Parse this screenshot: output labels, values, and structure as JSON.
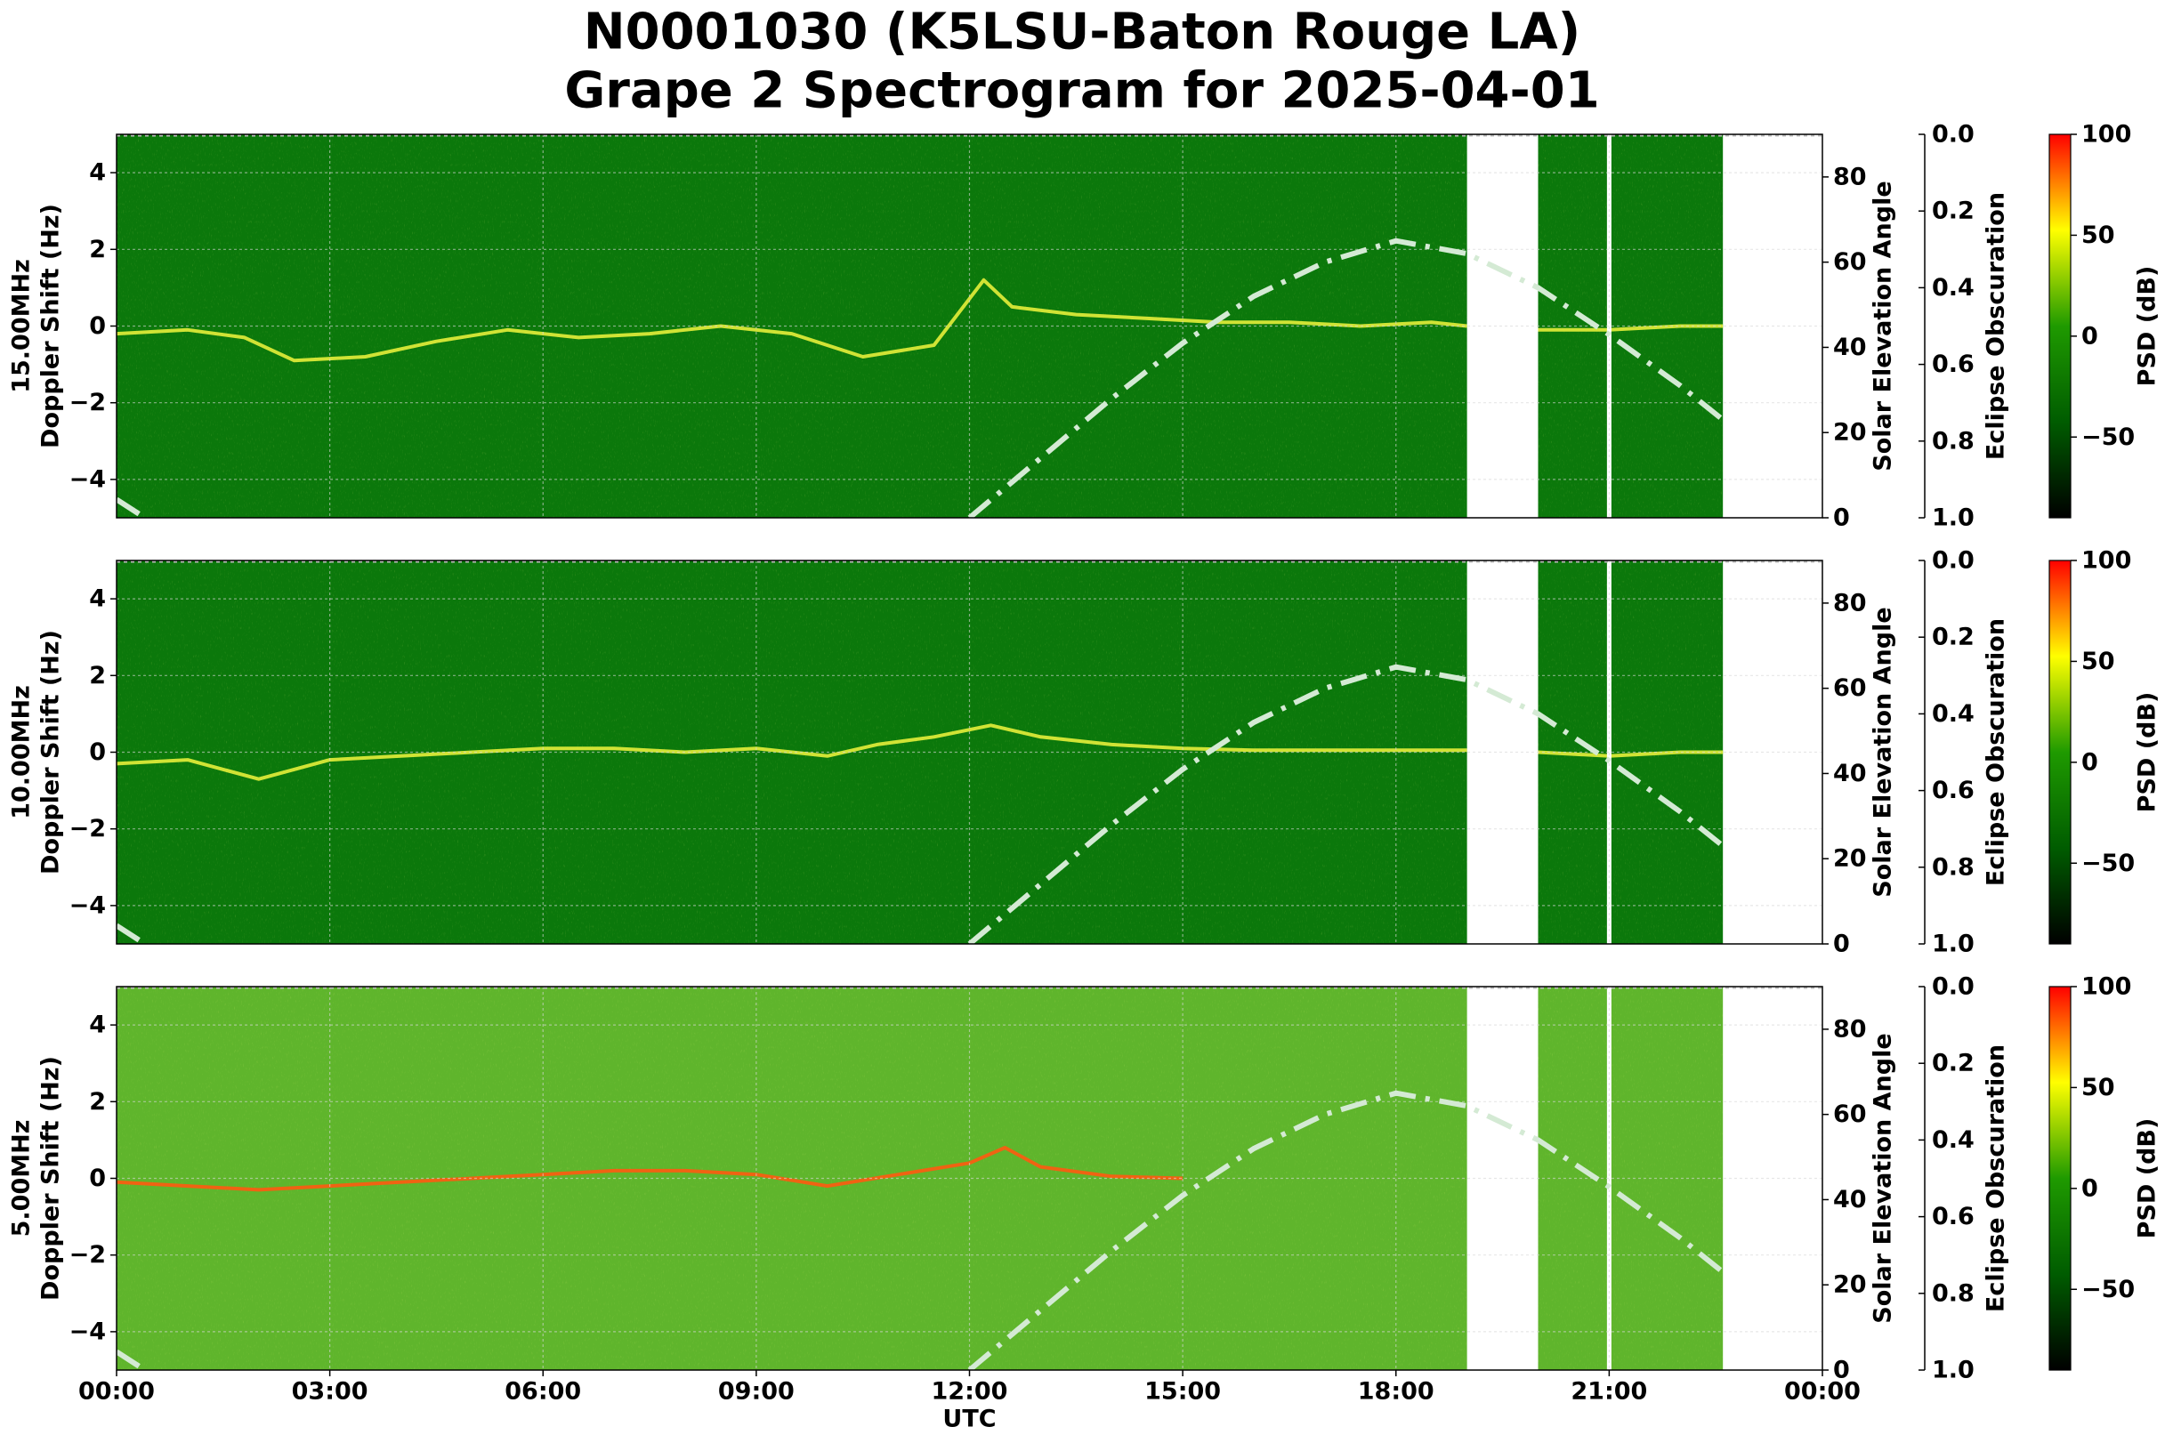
{
  "title": [
    "N0001030 (K5LSU-Baton Rouge LA)",
    "Grape 2 Spectrogram for 2025-04-01"
  ],
  "chart_data": [
    {
      "type": "spectrogram",
      "ylabel": [
        "15.00MHz",
        "Doppler Shift (Hz)"
      ],
      "xlim": [
        0,
        24
      ],
      "ylim": [
        -5,
        5
      ],
      "yticks": [
        {
          "value": -4,
          "label": "−4"
        },
        {
          "value": -2,
          "label": "−2"
        },
        0,
        2,
        4
      ],
      "y2label": "Solar Elevation Angle",
      "y2lim": [
        0,
        90
      ],
      "y2ticks": [
        0,
        20,
        40,
        60,
        80
      ],
      "eclipse_label": "Eclipse Obscuration",
      "eclipse_lim": [
        1,
        0
      ],
      "eclipse_ticks": [
        {
          "value": 0,
          "label": "0.0"
        },
        0.2,
        0.4,
        0.6,
        0.8,
        {
          "value": 1,
          "label": "1.0"
        }
      ],
      "colorbar_label": "PSD (dB)",
      "clim": [
        -90,
        100
      ],
      "cticks": [
        {
          "value": -50,
          "label": "−50"
        },
        0,
        50,
        100
      ],
      "colormap": [
        "#000000",
        "#005c00",
        "#1f9a00",
        "#ffff00",
        "#ff0000"
      ],
      "background": "#0b780b",
      "grid": true,
      "data_span": [
        0,
        22.6
      ],
      "gaps": [
        [
          19,
          20
        ]
      ],
      "dropouts": [
        21
      ],
      "trace": {
        "color": "#e6ee3a",
        "x": [
          0,
          1,
          1.8,
          2.5,
          3.5,
          4.5,
          5.5,
          6.5,
          7.5,
          8.5,
          9.5,
          10.5,
          11.5,
          12.2,
          12.6,
          13.5,
          14.5,
          15.5,
          16.5,
          17.5,
          18.5,
          19,
          null,
          20,
          21,
          22,
          22.6
        ],
        "values": [
          -0.2,
          -0.1,
          -0.3,
          -0.9,
          -0.8,
          -0.4,
          -0.1,
          -0.3,
          -0.2,
          0,
          -0.2,
          -0.8,
          -0.5,
          1.2,
          0.5,
          0.3,
          0.2,
          0.1,
          0.1,
          0,
          0.1,
          0,
          null,
          -0.1,
          -0.1,
          0,
          0
        ]
      },
      "solar": {
        "color": "#d4ead4",
        "axis": "y2",
        "x": [
          0,
          0.4,
          null,
          12,
          13,
          14,
          15,
          16,
          17,
          18,
          19,
          20,
          21,
          22,
          22.6
        ],
        "values": [
          4.3,
          0,
          null,
          0,
          14,
          28,
          41,
          52,
          60,
          65,
          62,
          54,
          43,
          31,
          23
        ]
      }
    },
    {
      "type": "spectrogram",
      "ylabel": [
        "10.00MHz",
        "Doppler Shift (Hz)"
      ],
      "xlim": [
        0,
        24
      ],
      "ylim": [
        -5,
        5
      ],
      "yticks": [
        {
          "value": -4,
          "label": "−4"
        },
        {
          "value": -2,
          "label": "−2"
        },
        0,
        2,
        4
      ],
      "y2label": "Solar Elevation Angle",
      "y2lim": [
        0,
        90
      ],
      "y2ticks": [
        0,
        20,
        40,
        60,
        80
      ],
      "eclipse_label": "Eclipse Obscuration",
      "eclipse_lim": [
        1,
        0
      ],
      "eclipse_ticks": [
        {
          "value": 0,
          "label": "0.0"
        },
        0.2,
        0.4,
        0.6,
        0.8,
        {
          "value": 1,
          "label": "1.0"
        }
      ],
      "colorbar_label": "PSD (dB)",
      "clim": [
        -90,
        100
      ],
      "cticks": [
        {
          "value": -50,
          "label": "−50"
        },
        0,
        50,
        100
      ],
      "colormap": [
        "#000000",
        "#005c00",
        "#1f9a00",
        "#ffff00",
        "#ff0000"
      ],
      "background": "#0b780b",
      "grid": true,
      "data_span": [
        0,
        22.6
      ],
      "gaps": [
        [
          19,
          20
        ]
      ],
      "dropouts": [
        21
      ],
      "trace": {
        "color": "#e6ee3a",
        "x": [
          0,
          1,
          2,
          3,
          4,
          5,
          6,
          7,
          8,
          9,
          10,
          10.7,
          11.5,
          12.3,
          13,
          14,
          15,
          16,
          17,
          18,
          19,
          null,
          20,
          21,
          22,
          22.6
        ],
        "values": [
          -0.3,
          -0.2,
          -0.7,
          -0.2,
          -0.1,
          0,
          0.1,
          0.1,
          0,
          0.1,
          -0.1,
          0.2,
          0.4,
          0.7,
          0.4,
          0.2,
          0.1,
          0.05,
          0.05,
          0.05,
          0.05,
          null,
          0,
          -0.1,
          0,
          0
        ]
      },
      "solar": {
        "color": "#d4ead4",
        "axis": "y2",
        "x": [
          0,
          0.4,
          null,
          12,
          13,
          14,
          15,
          16,
          17,
          18,
          19,
          20,
          21,
          22,
          22.6
        ],
        "values": [
          4.3,
          0,
          null,
          0,
          14,
          28,
          41,
          52,
          60,
          65,
          62,
          54,
          43,
          31,
          23
        ]
      }
    },
    {
      "type": "spectrogram",
      "ylabel": [
        "5.00MHz",
        "Doppler Shift (Hz)"
      ],
      "xlabel": "UTC",
      "xlim": [
        0,
        24
      ],
      "xticks": [
        {
          "value": 0,
          "label": "00:00"
        },
        {
          "value": 3,
          "label": "03:00"
        },
        {
          "value": 6,
          "label": "06:00"
        },
        {
          "value": 9,
          "label": "09:00"
        },
        {
          "value": 12,
          "label": "12:00"
        },
        {
          "value": 15,
          "label": "15:00"
        },
        {
          "value": 18,
          "label": "18:00"
        },
        {
          "value": 21,
          "label": "21:00"
        },
        {
          "value": 24,
          "label": "00:00"
        }
      ],
      "ylim": [
        -5,
        5
      ],
      "yticks": [
        {
          "value": -4,
          "label": "−4"
        },
        {
          "value": -2,
          "label": "−2"
        },
        0,
        2,
        4
      ],
      "y2label": "Solar Elevation Angle",
      "y2lim": [
        0,
        90
      ],
      "y2ticks": [
        0,
        20,
        40,
        60,
        80
      ],
      "eclipse_label": "Eclipse Obscuration",
      "eclipse_lim": [
        1,
        0
      ],
      "eclipse_ticks": [
        {
          "value": 0,
          "label": "0.0"
        },
        0.2,
        0.4,
        0.6,
        0.8,
        {
          "value": 1,
          "label": "1.0"
        }
      ],
      "colorbar_label": "PSD (dB)",
      "clim": [
        -90,
        100
      ],
      "cticks": [
        {
          "value": -50,
          "label": "−50"
        },
        0,
        50,
        100
      ],
      "colormap": [
        "#000000",
        "#005c00",
        "#1f9a00",
        "#ffff00",
        "#ff0000"
      ],
      "background": "#5fb52c",
      "grid": true,
      "data_span": [
        0,
        22.6
      ],
      "gaps": [
        [
          19,
          20
        ]
      ],
      "dropouts": [
        21
      ],
      "trace": {
        "color": "#ff5a10",
        "x": [
          0,
          1,
          2,
          3,
          4,
          5,
          6,
          7,
          8,
          9,
          10,
          11,
          12,
          12.5,
          13,
          14,
          15
        ],
        "values": [
          -0.1,
          -0.2,
          -0.3,
          -0.2,
          -0.1,
          0,
          0.1,
          0.2,
          0.2,
          0.1,
          -0.2,
          0.1,
          0.4,
          0.8,
          0.3,
          0.05,
          0
        ]
      },
      "solar": {
        "color": "#d4ead4",
        "axis": "y2",
        "x": [
          0,
          0.4,
          null,
          12,
          13,
          14,
          15,
          16,
          17,
          18,
          19,
          20,
          21,
          22,
          22.6
        ],
        "values": [
          4.3,
          0,
          null,
          0,
          14,
          28,
          41,
          52,
          60,
          65,
          62,
          54,
          43,
          31,
          23
        ]
      }
    }
  ]
}
